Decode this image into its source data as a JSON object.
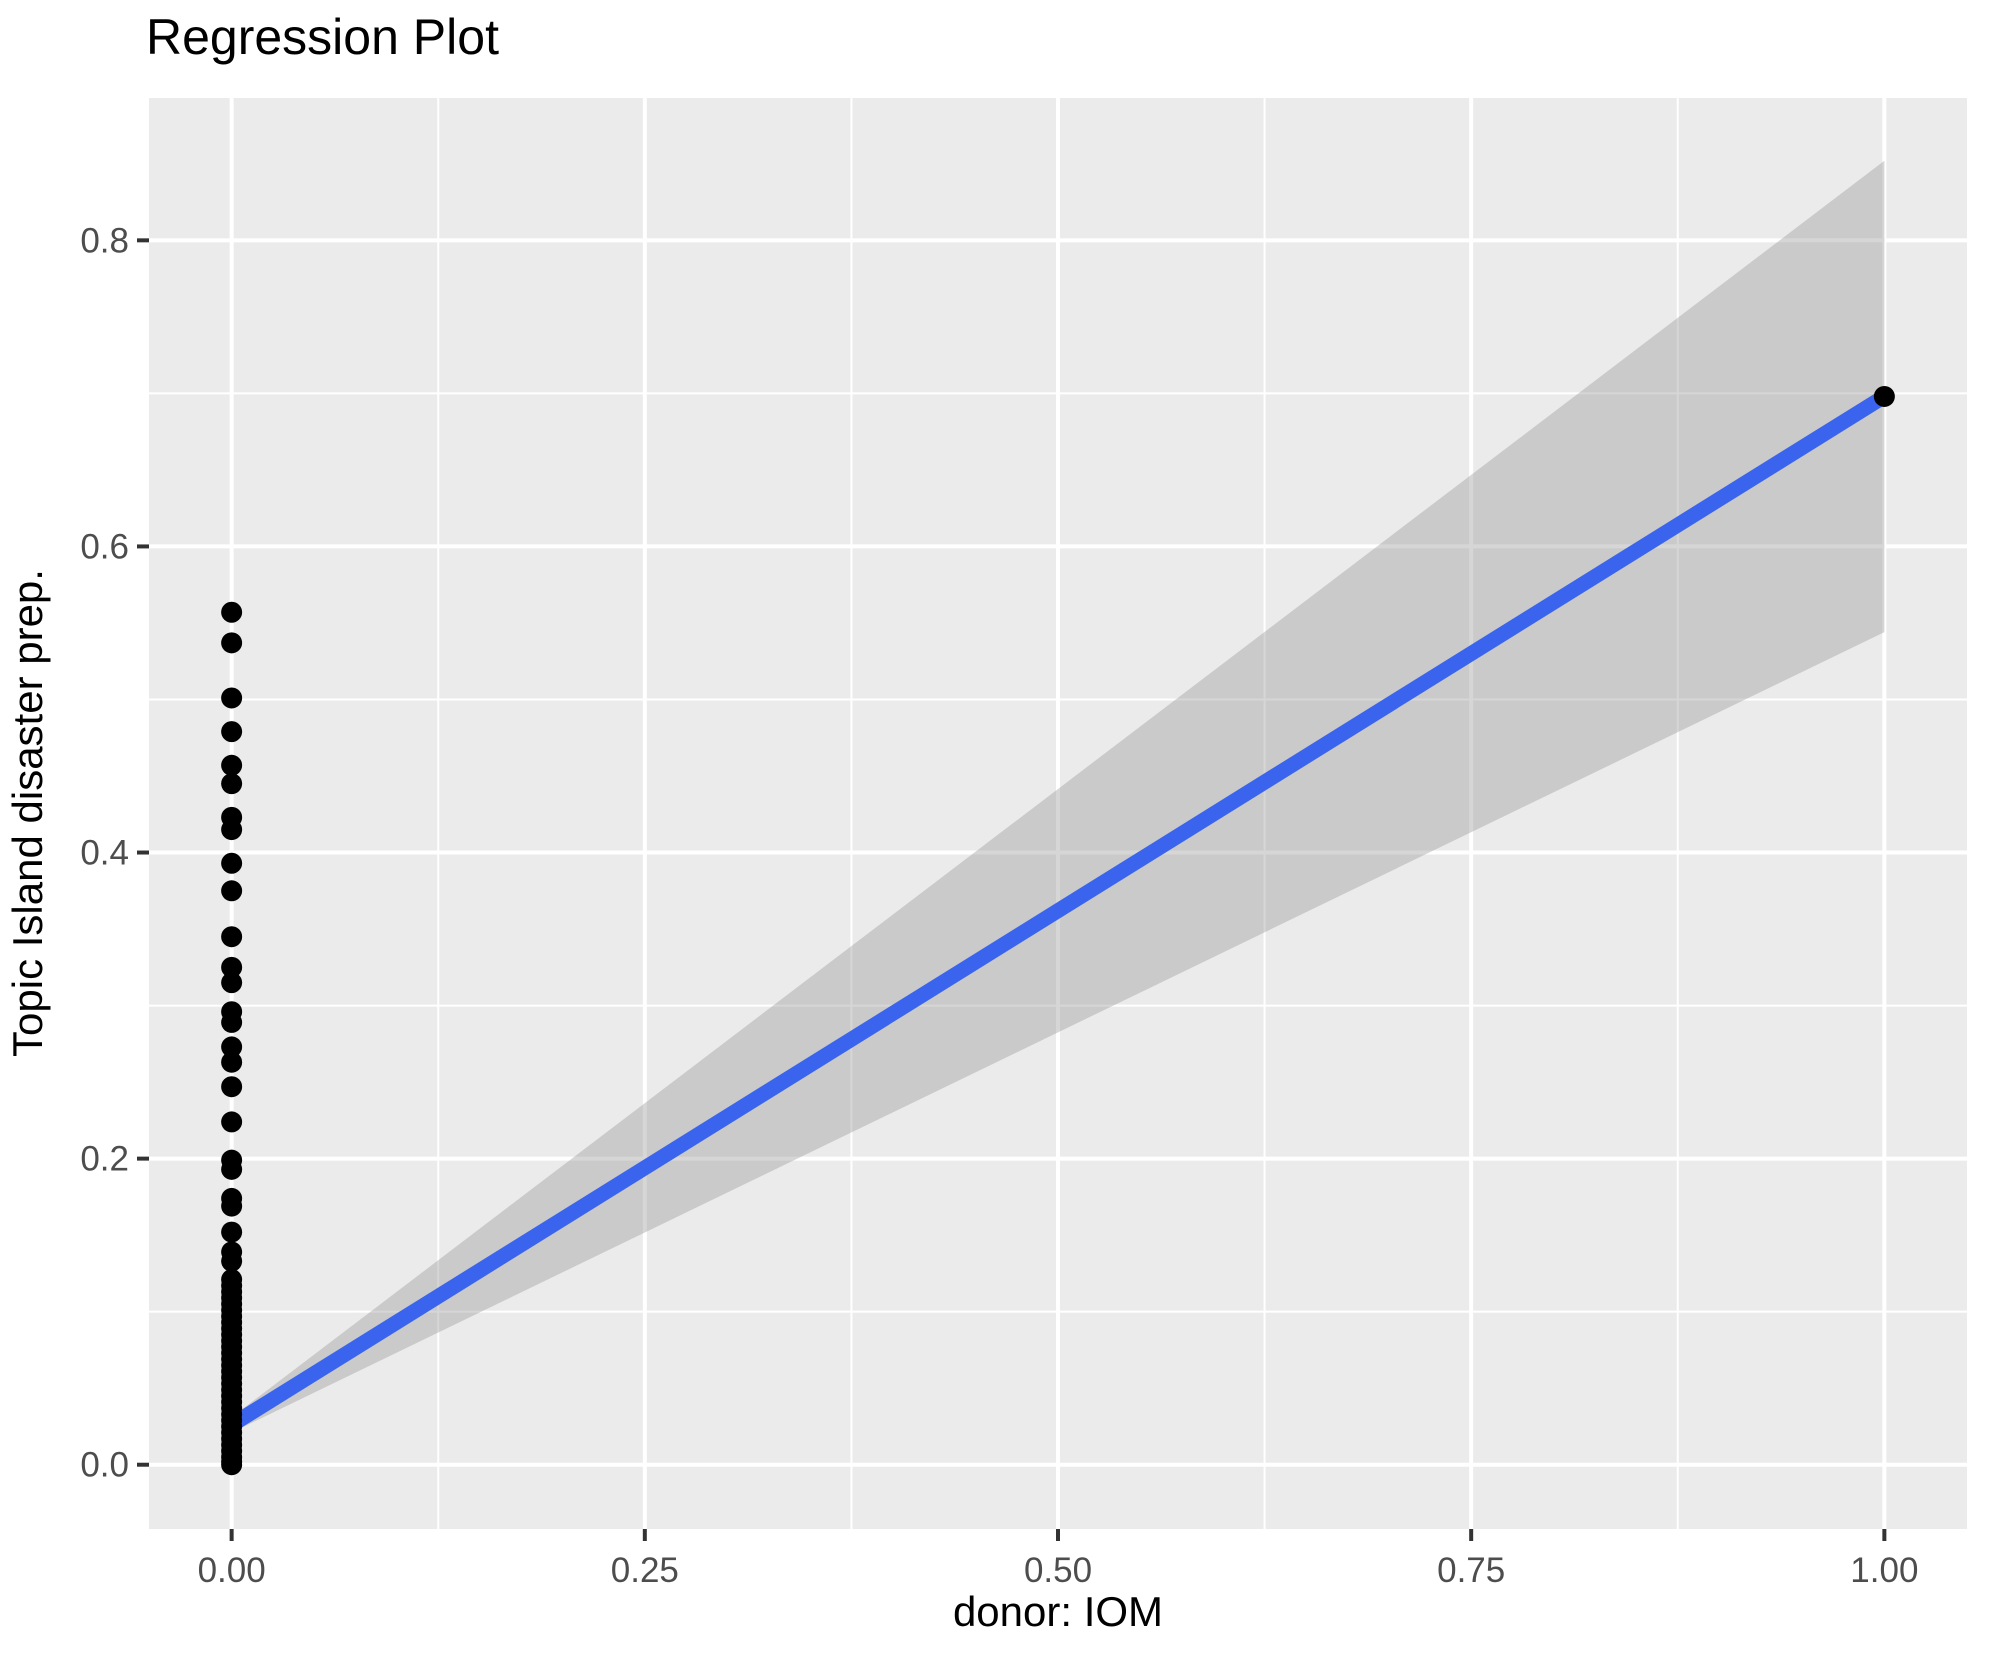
{
  "chart_data": {
    "type": "scatter",
    "title": "Regression Plot",
    "xlabel": "donor: IOM",
    "ylabel": "Topic Island disaster prep.",
    "xlim": [
      -0.05,
      1.05
    ],
    "ylim": [
      -0.042,
      0.893
    ],
    "grid": true,
    "legend": false,
    "x_ticks": {
      "values": [
        0.0,
        0.25,
        0.5,
        0.75,
        1.0
      ],
      "labels": [
        "0.00",
        "0.25",
        "0.50",
        "0.75",
        "1.00"
      ]
    },
    "y_ticks": {
      "values": [
        0.0,
        0.2,
        0.4,
        0.6,
        0.8
      ],
      "labels": [
        "0.0",
        "0.2",
        "0.4",
        "0.6",
        "0.8"
      ]
    },
    "x_minor": [
      0.125,
      0.375,
      0.625,
      0.875
    ],
    "y_minor": [
      0.1,
      0.3,
      0.5,
      0.7
    ],
    "series": [
      {
        "x": 0.0,
        "y_values": [
          0.557,
          0.537,
          0.501,
          0.479,
          0.457,
          0.445,
          0.423,
          0.415,
          0.393,
          0.375,
          0.345,
          0.325,
          0.315,
          0.296,
          0.289,
          0.273,
          0.263,
          0.247,
          0.224,
          0.199,
          0.193,
          0.174,
          0.169,
          0.152,
          0.139,
          0.133,
          0.121,
          0.117,
          0.113,
          0.109,
          0.105,
          0.101,
          0.097,
          0.093,
          0.089,
          0.085,
          0.081,
          0.077,
          0.073,
          0.069,
          0.065,
          0.061,
          0.057,
          0.053,
          0.049,
          0.045,
          0.041,
          0.037,
          0.033,
          0.029,
          0.025,
          0.021,
          0.017,
          0.013,
          0.009,
          0.005,
          0.002,
          0.0
        ]
      },
      {
        "x": 1.0,
        "y_values": [
          0.698
        ]
      }
    ],
    "regression_line": {
      "x": [
        0.0,
        1.0
      ],
      "y": [
        0.026,
        0.698
      ]
    },
    "confidence_band": {
      "x": [
        0.0,
        1.0
      ],
      "upper": [
        0.031,
        0.852
      ],
      "lower": [
        0.021,
        0.544
      ]
    },
    "colors": {
      "panel_bg": "#EBEBEB",
      "grid": "#FFFFFF",
      "point": "#000000",
      "line": "#3A64ED",
      "ribbon": "rgba(153,153,153,0.40)",
      "tick_text": "#4D4D4D",
      "tick_mark": "#333333",
      "title_text": "#000000"
    }
  }
}
